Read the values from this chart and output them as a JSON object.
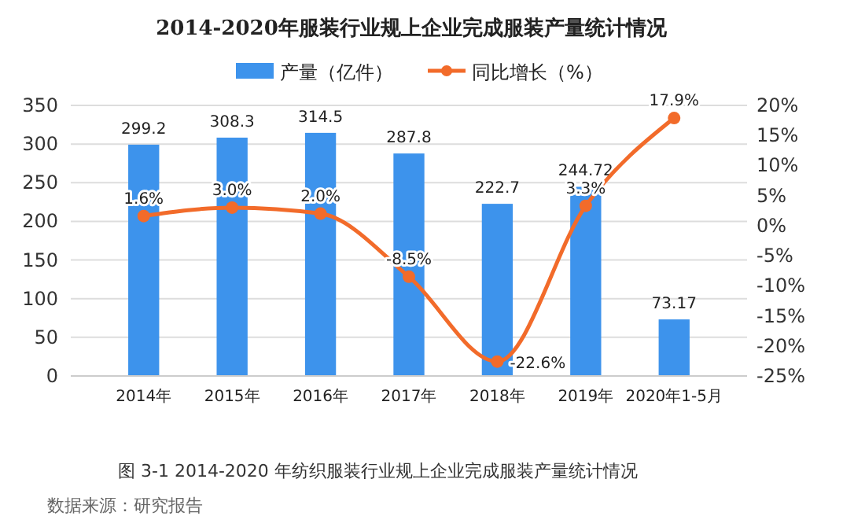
{
  "chart_data": {
    "type": "bar",
    "title": "2014-2020年服装行业规上企业完成服装产量统计情况",
    "categories": [
      "2014年",
      "2015年",
      "2016年",
      "2017年",
      "2018年",
      "2019年",
      "2020年1-5月"
    ],
    "series": [
      {
        "name": "产量（亿件）",
        "color": "#3d93ec",
        "values": [
          299.2,
          308.3,
          314.5,
          287.8,
          222.7,
          244.72,
          73.17
        ],
        "value_labels": [
          "299.2",
          "308.3",
          "314.5",
          "287.8",
          "222.7",
          "244.72",
          "73.17"
        ]
      },
      {
        "name": "同比增长（%）",
        "type": "line",
        "axis": "y2",
        "color": "#f26b2a",
        "values": [
          1.6,
          3.0,
          2.0,
          -8.5,
          -22.6,
          3.3,
          17.9
        ],
        "value_labels": [
          "1.6%",
          "3.0%",
          "2.0%",
          "-8.5%",
          "-22.6%",
          "3.3%",
          "17.9%"
        ]
      }
    ],
    "ylim": [
      0,
      350
    ],
    "yticks": [
      0,
      50,
      100,
      150,
      200,
      250,
      300,
      350
    ],
    "y2lim": [
      -25,
      20
    ],
    "y2ticks": [
      {
        "value": -25,
        "label": "-25%"
      },
      {
        "value": -20,
        "label": "-20%"
      },
      {
        "value": -15,
        "label": "-15%"
      },
      {
        "value": -10,
        "label": "-10%"
      },
      {
        "value": -5,
        "label": "-5%"
      },
      {
        "value": 0,
        "label": "0%"
      },
      {
        "value": 5,
        "label": "5%"
      },
      {
        "value": 10,
        "label": "10%"
      },
      {
        "value": 15,
        "label": "15%"
      },
      {
        "value": 20,
        "label": "20%"
      }
    ],
    "grid": "y",
    "legend": "top",
    "marker": "circle",
    "annotations": [
      "图 3-1  2014-2020 年纺织服装行业规上企业完成服装产量统计情况",
      "数据来源：研究报告"
    ]
  }
}
